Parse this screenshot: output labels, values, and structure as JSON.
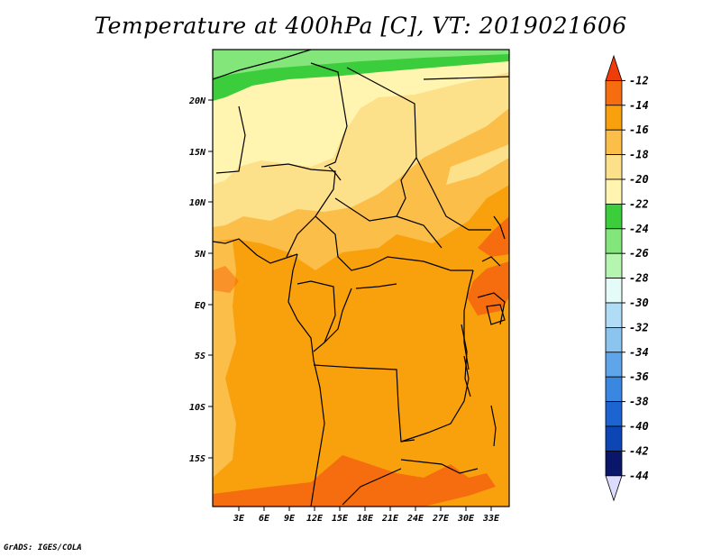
{
  "title": "Temperature at 400hPa [C], VT: 2019021606",
  "credit": "GrADS: IGES/COLA",
  "map": {
    "lat_labels": [
      "20N",
      "15N",
      "10N",
      "5N",
      "EQ",
      "5S",
      "10S",
      "15S"
    ],
    "lon_labels": [
      "3E",
      "6E",
      "9E",
      "12E",
      "15E",
      "18E",
      "21E",
      "24E",
      "27E",
      "30E",
      "33E"
    ],
    "colors": {
      "band_25": "#82e67a",
      "band_23": "#3ccd3c",
      "band_21": "#fff5b0",
      "band_19": "#fde08a",
      "band_17": "#fbbe49",
      "band_15": "#f9a10d",
      "band_13": "#f66d0f",
      "coast": "#000000"
    }
  },
  "colorbar": {
    "labels": [
      "-12",
      "-14",
      "-16",
      "-18",
      "-20",
      "-22",
      "-24",
      "-26",
      "-28",
      "-30",
      "-32",
      "-34",
      "-36",
      "-38",
      "-40",
      "-42",
      "-44"
    ],
    "colors": [
      "#f03c0a",
      "#f66d0f",
      "#f9a10d",
      "#fbbe49",
      "#fde08a",
      "#fff5b0",
      "#3ccd3c",
      "#82e67a",
      "#b6f5b0",
      "#e4fbf8",
      "#b0dcf5",
      "#8cc4f0",
      "#5fa5ea",
      "#3a87e2",
      "#1c64d2",
      "#0c46b4",
      "#0a166a",
      "#dcdcff"
    ]
  }
}
